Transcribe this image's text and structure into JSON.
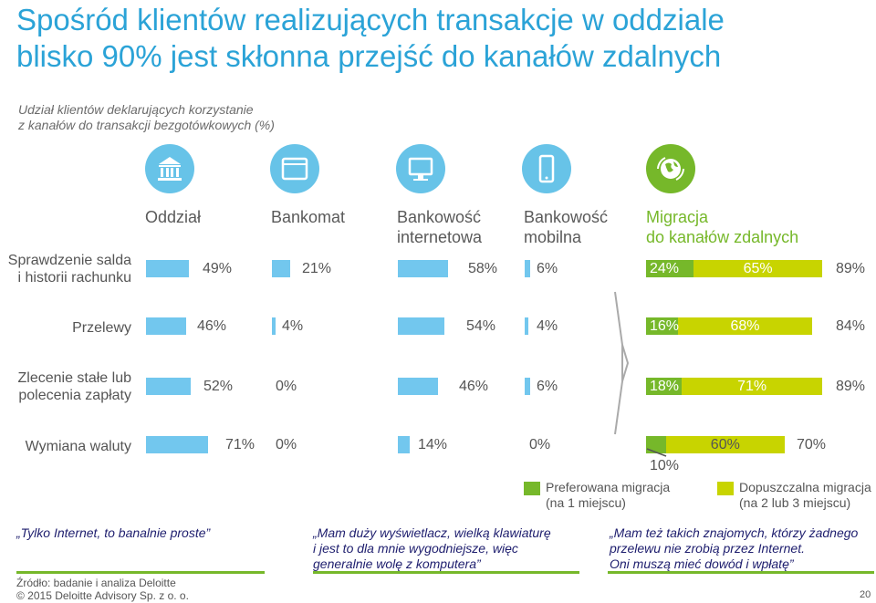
{
  "title_line1": "Spośród klientów realizujących transakcje w oddziale",
  "title_line2": "blisko 90% jest skłonna przejść do kanałów zdalnych",
  "subtitle_line1": "Udział klientów deklarujących korzystanie",
  "subtitle_line2": "z kanałów do transakcji bezgotówkowych (%)",
  "colors": {
    "title": "#2ba3d7",
    "blue_bar": "#72c7ee",
    "preferred": "#76b82a",
    "acceptable": "#c8d400"
  },
  "columns": [
    {
      "line1": "Oddział",
      "line2": "",
      "icon": "bank-icon"
    },
    {
      "line1": "Bankomat",
      "line2": "",
      "icon": "atm-screen-icon"
    },
    {
      "line1": "Bankowość",
      "line2": "internetowa",
      "icon": "monitor-icon"
    },
    {
      "line1": "Bankowość",
      "line2": "mobilna",
      "icon": "smartphone-icon"
    },
    {
      "line1": "Migracja",
      "line2": "do kanałów zdalnych",
      "icon": "globe-arrows-icon"
    }
  ],
  "chart_data": {
    "type": "bar",
    "categories": [
      "Sprawdzenie salda i historii rachunku",
      "Przelewy",
      "Zlecenie stałe lub polecenia zapłaty",
      "Wymiana waluty"
    ],
    "series": [
      {
        "name": "Oddział",
        "values": [
          49,
          46,
          52,
          71
        ]
      },
      {
        "name": "Bankomat",
        "values": [
          21,
          4,
          0,
          0
        ]
      },
      {
        "name": "Bankowość internetowa",
        "values": [
          58,
          54,
          46,
          14
        ]
      },
      {
        "name": "Bankowość mobilna",
        "values": [
          6,
          4,
          6,
          0
        ]
      },
      {
        "name": "Preferowana migracja (na 1 miejscu)",
        "values": [
          24,
          16,
          18,
          10
        ]
      },
      {
        "name": "Dopuszczalna migracja (na 2 lub 3 miejscu)",
        "values": [
          65,
          68,
          71,
          60
        ]
      },
      {
        "name": "Migracja do kanałów zdalnych",
        "values": [
          89,
          84,
          89,
          70
        ]
      }
    ],
    "unit": "%"
  },
  "rows": [
    {
      "label1": "Sprawdzenie salda",
      "label2": "i historii rachunku",
      "c1": "49%",
      "c2": "21%",
      "c3": "58%",
      "c4": "6%",
      "pref": "24%",
      "acc": "65%",
      "total": "89%"
    },
    {
      "label1": "Przelewy",
      "label2": "",
      "c1": "46%",
      "c2": "4%",
      "c3": "54%",
      "c4": "4%",
      "pref": "16%",
      "acc": "68%",
      "total": "84%"
    },
    {
      "label1": "Zlecenie stałe lub",
      "label2": "polecenia zapłaty",
      "c1": "52%",
      "c2": "0%",
      "c3": "46%",
      "c4": "6%",
      "pref": "18%",
      "acc": "71%",
      "total": "89%"
    },
    {
      "label1": "Wymiana waluty",
      "label2": "",
      "c1": "71%",
      "c2": "0%",
      "c3": "14%",
      "c4": "0%",
      "pref": "10%",
      "acc": "60%",
      "total": "70%"
    }
  ],
  "legend": {
    "preferred_line1": "Preferowana migracja",
    "preferred_line2": "(na 1 miejscu)",
    "acceptable_line1": "Dopuszczalna migracja",
    "acceptable_line2": "(na 2 lub 3 miejscu)"
  },
  "quotes": {
    "q1": "„Tylko Internet, to banalnie proste”",
    "q2_line1": "„Mam duży wyświetlacz, wielką klawiaturę",
    "q2_line2": "i jest to dla mnie wygodniejsze, więc",
    "q2_line3": "generalnie wolę z komputera”",
    "q3_line1": "„Mam też takich znajomych, którzy żadnego",
    "q3_line2": "przelewu nie zrobią przez Internet.",
    "q3_line3": "Oni muszą mieć dowód i wpłatę”"
  },
  "footer": {
    "source": "Źródło: badanie i analiza Deloitte",
    "copyright": "© 2015 Deloitte Advisory Sp. z o. o.",
    "page": "20"
  }
}
